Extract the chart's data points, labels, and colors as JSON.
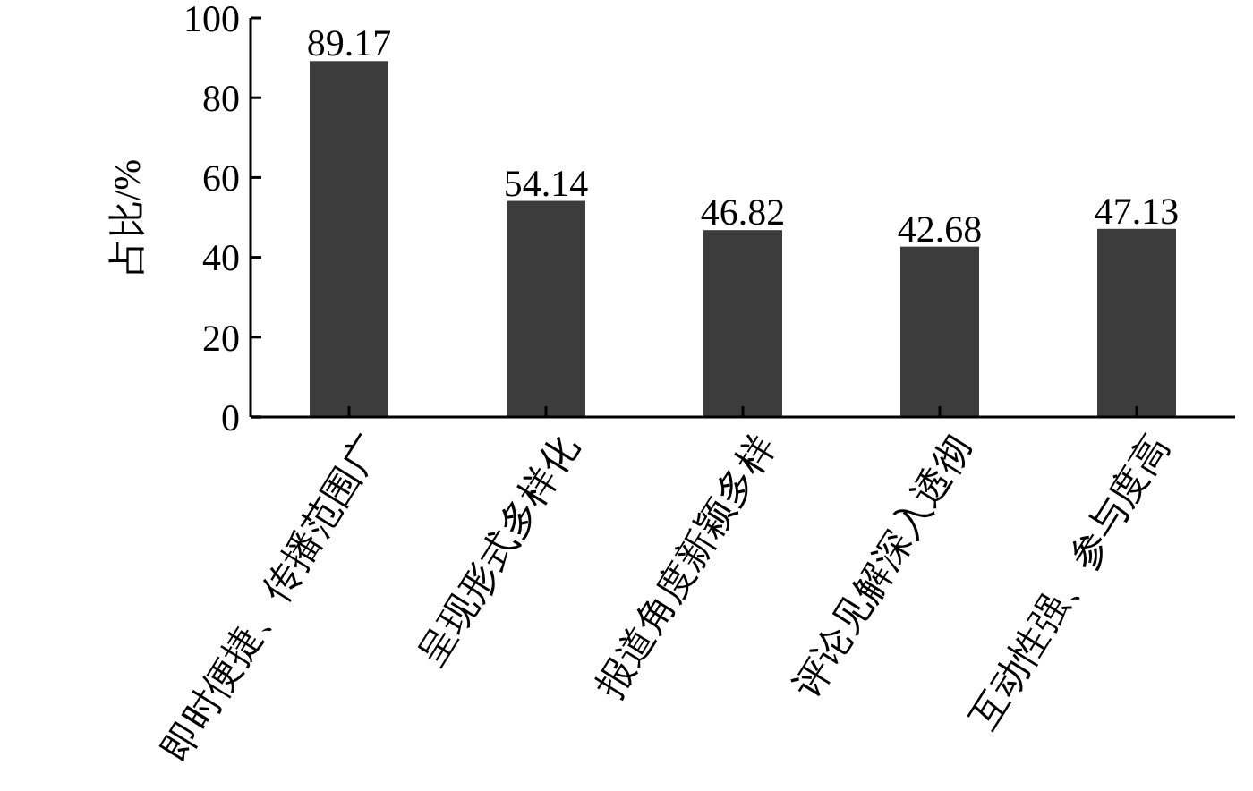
{
  "chart_data": {
    "type": "bar",
    "ylabel": "占比/%",
    "categories": [
      "即时便捷、传播范围广",
      "呈现形式多样化",
      "报道角度新颖多样",
      "评论见解深入透彻",
      "互动性强、参与度高"
    ],
    "values": [
      89.17,
      54.14,
      46.82,
      42.68,
      47.13
    ],
    "color": "#3c3c3c",
    "ylim": [
      0,
      100
    ],
    "yticks": [
      0,
      20,
      40,
      60,
      80,
      100
    ],
    "data_labels": true
  }
}
